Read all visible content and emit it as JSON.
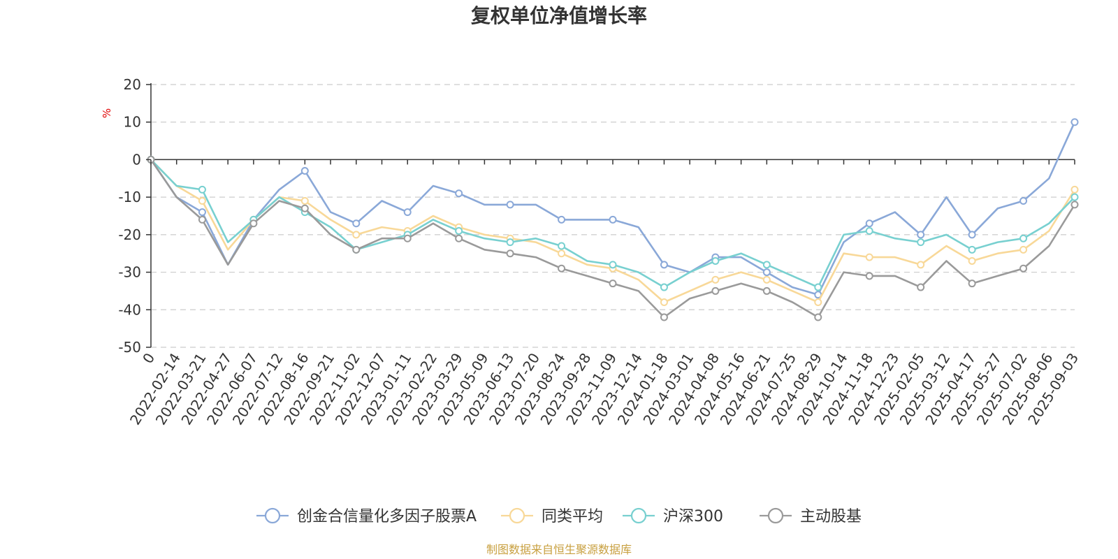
{
  "chart_data": {
    "type": "line",
    "title": "复权单位净值增长率",
    "ylabel": "%",
    "ylim": [
      -50,
      20
    ],
    "yticks": [
      20,
      10,
      0,
      -10,
      -20,
      -30,
      -40,
      -50
    ],
    "categories": [
      "0",
      "2022-02-14",
      "2022-03-21",
      "2022-04-27",
      "2022-06-07",
      "2022-07-12",
      "2022-08-16",
      "2022-09-21",
      "2022-11-02",
      "2022-12-07",
      "2023-01-11",
      "2023-02-22",
      "2023-03-29",
      "2023-05-09",
      "2023-06-13",
      "2023-07-20",
      "2023-08-24",
      "2023-09-28",
      "2023-11-09",
      "2023-12-14",
      "2024-01-18",
      "2024-03-01",
      "2024-04-08",
      "2024-05-16",
      "2024-06-21",
      "2024-07-25",
      "2024-08-29",
      "2024-10-14",
      "2024-11-18",
      "2024-12-23",
      "2025-02-05",
      "2025-03-12",
      "2025-04-17",
      "2025-05-27",
      "2025-07-02",
      "2025-08-06",
      "2025-09-03"
    ],
    "grid": true,
    "legend_position": "bottom",
    "series": [
      {
        "name": "创金合信量化多因子股票A",
        "color": "#8aa8d8",
        "values": [
          0,
          -10,
          -14,
          -28,
          -16,
          -8,
          -3,
          -14,
          -17,
          -11,
          -14,
          -7,
          -9,
          -12,
          -12,
          -12,
          -16,
          -16,
          -16,
          -18,
          -28,
          -30,
          -26,
          -26,
          -30,
          -34,
          -36,
          -22,
          -17,
          -14,
          -20,
          -10,
          -20,
          -13,
          -11,
          -5,
          10
        ]
      },
      {
        "name": "同类平均",
        "color": "#f8d898",
        "values": [
          0,
          -7,
          -11,
          -24,
          -16,
          -10,
          -11,
          -16,
          -20,
          -18,
          -19,
          -15,
          -18,
          -20,
          -21,
          -22,
          -25,
          -28,
          -29,
          -32,
          -38,
          -35,
          -32,
          -30,
          -32,
          -35,
          -38,
          -25,
          -26,
          -26,
          -28,
          -23,
          -27,
          -25,
          -24,
          -19,
          -8
        ]
      },
      {
        "name": "沪深300",
        "color": "#78d0d0",
        "values": [
          0,
          -7,
          -8,
          -22,
          -16,
          -10,
          -14,
          -18,
          -24,
          -22,
          -20,
          -16,
          -19,
          -21,
          -22,
          -21,
          -23,
          -27,
          -28,
          -30,
          -34,
          -30,
          -27,
          -25,
          -28,
          -31,
          -34,
          -20,
          -19,
          -21,
          -22,
          -20,
          -24,
          -22,
          -21,
          -17,
          -10
        ]
      },
      {
        "name": "主动股基",
        "color": "#9a9a9a",
        "values": [
          0,
          -10,
          -16,
          -28,
          -17,
          -11,
          -13,
          -20,
          -24,
          -21,
          -21,
          -17,
          -21,
          -24,
          -25,
          -26,
          -29,
          -31,
          -33,
          -35,
          -42,
          -37,
          -35,
          -33,
          -35,
          -38,
          -42,
          -30,
          -31,
          -31,
          -34,
          -27,
          -33,
          -31,
          -29,
          -23,
          -12
        ]
      }
    ],
    "source_note": "制图数据来自恒生聚源数据库"
  }
}
